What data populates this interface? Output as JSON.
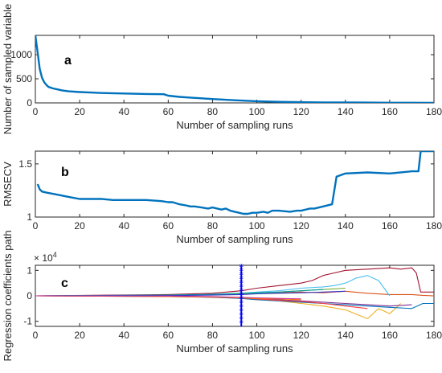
{
  "chart_data": [
    {
      "type": "line",
      "panel_label": "a",
      "xlabel": "Number of sampling runs",
      "ylabel": "Number of sampled variable",
      "xlim": [
        0,
        180
      ],
      "ylim": [
        0,
        1400
      ],
      "xticks": [
        0,
        20,
        40,
        60,
        80,
        100,
        120,
        140,
        160,
        180
      ],
      "yticks": [
        0,
        500,
        1000
      ],
      "grid": false,
      "color": "#0072BD",
      "x": [
        0,
        1,
        2,
        3,
        4,
        5,
        6,
        8,
        10,
        12,
        15,
        20,
        25,
        30,
        40,
        50,
        58,
        60,
        65,
        70,
        80,
        90,
        100,
        110,
        120,
        130,
        140,
        150,
        160,
        170,
        180
      ],
      "values": [
        1400,
        1050,
        700,
        520,
        430,
        370,
        330,
        300,
        280,
        260,
        240,
        225,
        215,
        205,
        195,
        185,
        180,
        150,
        125,
        110,
        80,
        55,
        35,
        22,
        15,
        10,
        8,
        6,
        4,
        3,
        2
      ]
    },
    {
      "type": "line",
      "panel_label": "b",
      "xlabel": "Number of sampling runs",
      "ylabel": "RMSECV",
      "xlim": [
        0,
        180
      ],
      "ylim": [
        1,
        1.62
      ],
      "xticks": [
        0,
        20,
        40,
        60,
        80,
        100,
        120,
        140,
        160,
        180
      ],
      "yticks": [
        1,
        1.5
      ],
      "ytick_labels": [
        "1",
        "1.5"
      ],
      "grid": false,
      "color": "#0072BD",
      "x": [
        1,
        2,
        3,
        5,
        10,
        15,
        20,
        30,
        35,
        40,
        50,
        57,
        60,
        62,
        65,
        68,
        70,
        72,
        75,
        78,
        80,
        84,
        86,
        88,
        90,
        92,
        94,
        96,
        98,
        100,
        103,
        105,
        107,
        110,
        115,
        118,
        120,
        124,
        126,
        130,
        134,
        136,
        140,
        150,
        160,
        170,
        173,
        174,
        180
      ],
      "values": [
        1.31,
        1.26,
        1.24,
        1.23,
        1.21,
        1.19,
        1.17,
        1.17,
        1.16,
        1.16,
        1.16,
        1.15,
        1.14,
        1.14,
        1.12,
        1.11,
        1.1,
        1.1,
        1.09,
        1.08,
        1.09,
        1.07,
        1.08,
        1.06,
        1.05,
        1.04,
        1.03,
        1.03,
        1.04,
        1.04,
        1.05,
        1.04,
        1.06,
        1.06,
        1.05,
        1.06,
        1.06,
        1.08,
        1.08,
        1.1,
        1.12,
        1.38,
        1.41,
        1.42,
        1.41,
        1.43,
        1.43,
        1.62,
        1.62
      ]
    },
    {
      "type": "line",
      "panel_label": "c",
      "xlabel": "Number of sampling runs",
      "ylabel": "Regression coefficients path",
      "y_exponent_label": "× 10^4",
      "xlim": [
        0,
        180
      ],
      "ylim": [
        -1.2,
        1.2
      ],
      "xticks": [
        0,
        20,
        40,
        60,
        80,
        100,
        120,
        140,
        160,
        180
      ],
      "yticks": [
        -1,
        0,
        1
      ],
      "grid": false,
      "marker_line_x": 93,
      "marker_color": "#0000FF",
      "series": [
        {
          "color": "#D95319",
          "x": [
            0,
            60,
            80,
            93,
            100,
            110,
            120,
            130,
            140,
            150,
            160,
            170,
            175,
            180
          ],
          "values": [
            0,
            0.02,
            0.05,
            0.08,
            0.1,
            0.12,
            0.15,
            0.12,
            0.18,
            0.1,
            0.05,
            0.05,
            0.02,
            0.0
          ]
        },
        {
          "color": "#A2142F",
          "x": [
            0,
            60,
            80,
            93,
            100,
            110,
            120,
            125,
            130,
            135,
            140,
            150,
            160,
            165,
            170,
            172,
            174,
            178,
            180
          ],
          "values": [
            0,
            0.05,
            0.1,
            0.2,
            0.3,
            0.4,
            0.5,
            0.6,
            0.8,
            0.9,
            1.0,
            1.05,
            1.1,
            1.05,
            1.1,
            0.9,
            0.15,
            0.15,
            0.15
          ]
        },
        {
          "color": "#4DBEEE",
          "x": [
            0,
            60,
            80,
            93,
            100,
            110,
            120,
            130,
            135,
            140,
            145,
            150,
            155,
            160
          ],
          "values": [
            0,
            0.03,
            0.05,
            0.1,
            0.15,
            0.2,
            0.3,
            0.35,
            0.4,
            0.5,
            0.7,
            0.8,
            0.6,
            0.0
          ]
        },
        {
          "color": "#EDB120",
          "x": [
            0,
            60,
            80,
            93,
            100,
            110,
            120,
            130,
            140,
            150,
            155,
            160,
            165
          ],
          "values": [
            0,
            -0.02,
            -0.05,
            -0.1,
            -0.15,
            -0.2,
            -0.3,
            -0.4,
            -0.55,
            -0.9,
            -0.5,
            -0.7,
            -0.3
          ]
        },
        {
          "color": "#0072BD",
          "x": [
            0,
            60,
            80,
            93,
            100,
            110,
            120,
            130,
            140,
            150,
            160,
            170,
            175,
            180
          ],
          "values": [
            0,
            -0.03,
            -0.06,
            -0.1,
            -0.15,
            -0.2,
            -0.25,
            -0.3,
            -0.35,
            -0.4,
            -0.45,
            -0.5,
            -0.3,
            -0.3
          ]
        },
        {
          "color": "#7E2F8E",
          "x": [
            0,
            60,
            80,
            93,
            100,
            110,
            120,
            130,
            140,
            150,
            160,
            170
          ],
          "values": [
            0,
            -0.02,
            -0.04,
            -0.08,
            -0.1,
            -0.15,
            -0.2,
            -0.25,
            -0.3,
            -0.35,
            -0.4,
            -0.35
          ]
        },
        {
          "color": "#77AC30",
          "x": [
            0,
            60,
            80,
            93,
            100,
            110,
            120,
            130,
            140
          ],
          "values": [
            0,
            0.02,
            0.04,
            0.06,
            0.1,
            0.15,
            0.2,
            0.25,
            0.3
          ]
        },
        {
          "color": "#FF4040",
          "x": [
            0,
            60,
            80,
            93,
            100,
            110,
            120,
            130,
            140,
            150
          ],
          "values": [
            0,
            -0.02,
            -0.05,
            -0.08,
            -0.12,
            -0.18,
            -0.22,
            -0.3,
            -0.4,
            -0.5
          ]
        },
        {
          "color": "#00A0A0",
          "x": [
            0,
            60,
            80,
            93,
            100,
            110,
            120,
            130
          ],
          "values": [
            0,
            0.03,
            0.06,
            0.1,
            0.12,
            0.15,
            0.2,
            0.25
          ]
        },
        {
          "color": "#FF8000",
          "x": [
            0,
            60,
            80,
            93,
            100,
            110,
            120
          ],
          "values": [
            0,
            -0.03,
            -0.05,
            -0.08,
            -0.1,
            -0.12,
            -0.15
          ]
        },
        {
          "color": "#3333CC",
          "x": [
            0,
            60,
            80,
            93,
            100,
            110,
            120,
            130,
            140
          ],
          "values": [
            0,
            0.01,
            0.03,
            0.05,
            0.08,
            0.1,
            0.12,
            0.15,
            0.18
          ]
        },
        {
          "color": "#CC3399",
          "x": [
            0,
            60,
            80,
            93,
            100,
            110,
            120
          ],
          "values": [
            0,
            -0.01,
            -0.03,
            -0.06,
            -0.08,
            -0.1,
            -0.12
          ]
        }
      ]
    }
  ]
}
